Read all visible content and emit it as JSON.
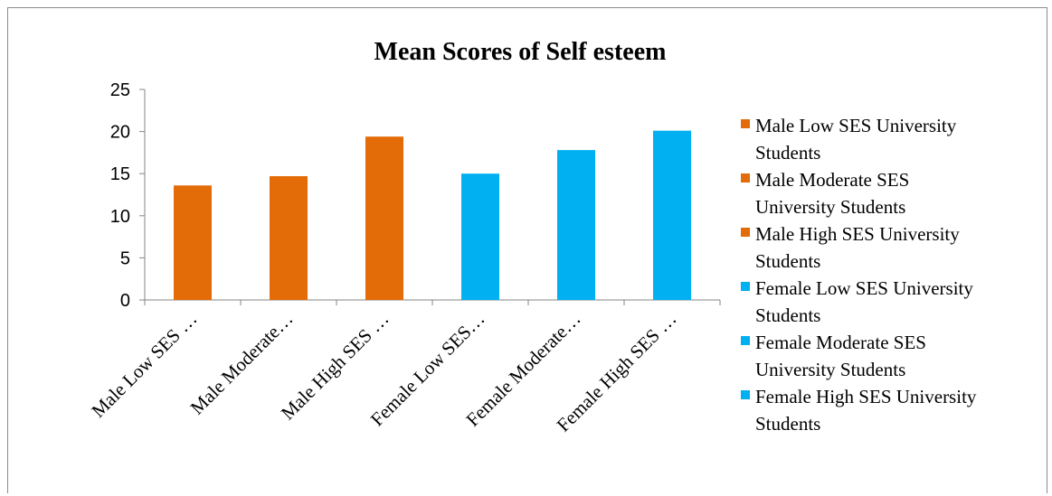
{
  "chart_data": {
    "type": "bar",
    "title": "Mean Scores of Self esteem",
    "categories": [
      "Male Low SES …",
      "Male Moderate…",
      "Male High SES …",
      "Female Low SES…",
      "Female Moderate…",
      "Female High SES …"
    ],
    "values": [
      13.6,
      14.7,
      19.4,
      15.0,
      17.8,
      20.1
    ],
    "bar_colors": [
      "#E36C09",
      "#E36C09",
      "#E36C09",
      "#00B0F0",
      "#00B0F0",
      "#00B0F0"
    ],
    "ylim": [
      0,
      25
    ],
    "yticks": [
      0,
      5,
      10,
      15,
      20,
      25
    ],
    "grid": false,
    "legend_position": "right",
    "legend": [
      {
        "label": "Male Low SES University Students",
        "line1": "Male Low SES University",
        "line2": "Students",
        "color": "#E36C09"
      },
      {
        "label": "Male Moderate SES University Students",
        "line1": "Male Moderate SES",
        "line2": "University Students",
        "color": "#E36C09"
      },
      {
        "label": "Male High SES University Students",
        "line1": "Male High SES University",
        "line2": "Students",
        "color": "#E36C09"
      },
      {
        "label": "Female Low SES University Students",
        "line1": "Female Low SES University",
        "line2": "Students",
        "color": "#00B0F0"
      },
      {
        "label": "Female Moderate SES University Students",
        "line1": "Female Moderate SES",
        "line2": "University Students",
        "color": "#00B0F0"
      },
      {
        "label": "Female High SES University Students",
        "line1": "Female High SES University",
        "line2": "Students",
        "color": "#00B0F0"
      }
    ]
  }
}
